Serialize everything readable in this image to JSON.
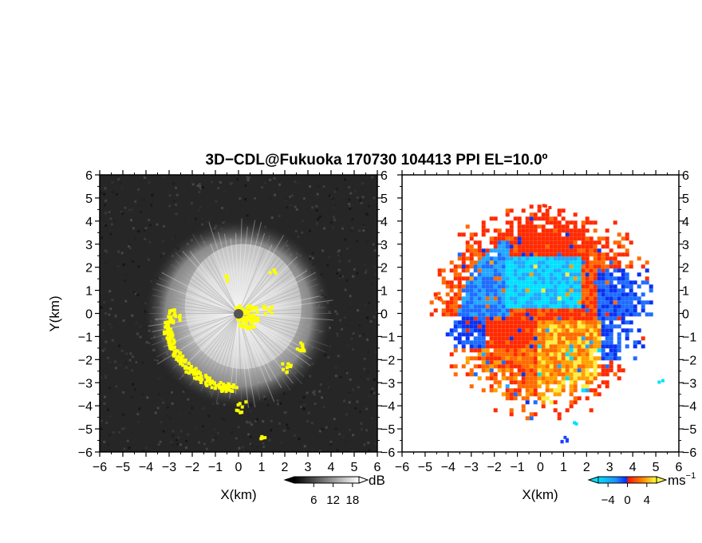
{
  "title": "3D−CDL@Fukuoka 170730 104413 PPI EL=10.0º",
  "chart_data": [
    {
      "type": "heatmap",
      "quantity": "reflectivity",
      "xlabel": "X(km)",
      "ylabel": "Y(km)",
      "xlim": [
        -6,
        6
      ],
      "ylim": [
        -6,
        6
      ],
      "xticks": [
        "−6",
        "−5",
        "−4",
        "−3",
        "−2",
        "−1",
        "0",
        "1",
        "2",
        "3",
        "4",
        "5",
        "6"
      ],
      "yticks": [
        "6",
        "5",
        "4",
        "3",
        "2",
        "1",
        "0",
        "−1",
        "−2",
        "−3",
        "−4",
        "−5",
        "−6"
      ],
      "colorbar": {
        "unit": "dB",
        "ticks": [
          6,
          12,
          18
        ],
        "tick_labels": [
          "6",
          "12",
          "18"
        ],
        "range": [
          0,
          20
        ],
        "colors": [
          "#000000",
          "#ffffff"
        ]
      },
      "radar_center": [
        0,
        0
      ],
      "echo_radius_km": 3.6,
      "highlight_color": "#ffff00"
    },
    {
      "type": "heatmap",
      "quantity": "doppler_velocity",
      "xlabel": "X(km)",
      "ylabel": "",
      "xlim": [
        -6,
        6
      ],
      "ylim": [
        -6,
        6
      ],
      "xticks": [
        "−6",
        "−5",
        "−4",
        "−3",
        "−2",
        "−1",
        "0",
        "1",
        "2",
        "3",
        "4",
        "5",
        "6"
      ],
      "yticks": [
        "6",
        "5",
        "4",
        "3",
        "2",
        "1",
        "0",
        "−1",
        "−2",
        "−3",
        "−4",
        "−5",
        "−6"
      ],
      "colorbar": {
        "unit": "ms",
        "unit_exponent": "−1",
        "ticks": [
          -4,
          0,
          4
        ],
        "tick_labels": [
          "−4",
          "0",
          "4"
        ],
        "range": [
          -6,
          6
        ],
        "colors": [
          "#00e0ff",
          "#0040ff",
          "#ff2000",
          "#ffa000",
          "#ffff40"
        ]
      },
      "radar_center": [
        0,
        0
      ],
      "echo_radius_km": 4.2
    }
  ]
}
